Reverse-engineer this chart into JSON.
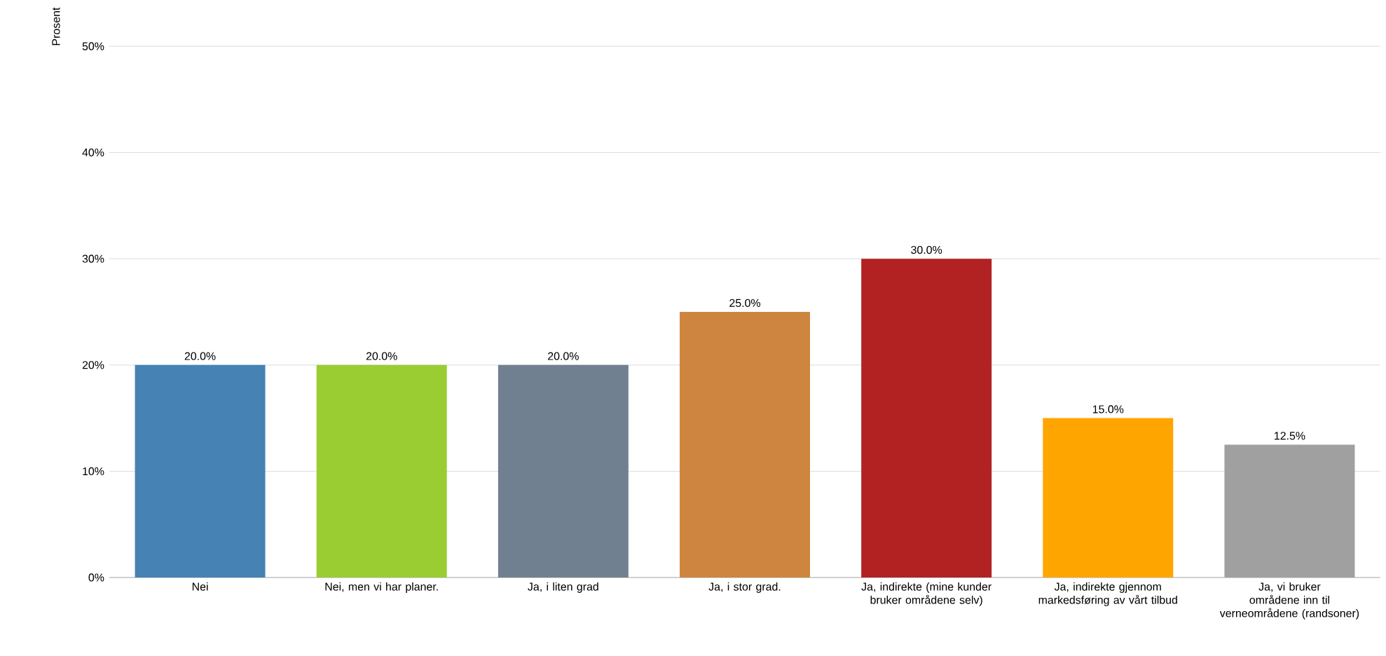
{
  "chart_data": {
    "type": "bar",
    "ylabel": "Prosent",
    "categories": [
      "Nei",
      "Nei, men vi har planer.",
      "Ja, i liten grad",
      "Ja, i stor grad.",
      "Ja, indirekte (mine kunder bruker områdene selv)",
      "Ja, indirekte gjennom markedsføring av vårt tilbud",
      "Ja, vi bruker områdene inn til verneområdene (randsoner)"
    ],
    "values": [
      20,
      20,
      20,
      25,
      30,
      15,
      12.5
    ],
    "value_labels": [
      "20.0%",
      "20.0%",
      "20.0%",
      "25.0%",
      "30.0%",
      "15.0%",
      "12.5%"
    ],
    "colors": [
      "#4682b4",
      "#9acd32",
      "#708090",
      "#cd853f",
      "#b22222",
      "#ffa500",
      "#a0a0a0"
    ],
    "ylim": [
      0,
      50
    ],
    "yticks": [
      {
        "value": 0,
        "label": "0%"
      },
      {
        "value": 10,
        "label": "10%"
      },
      {
        "value": 20,
        "label": "20%"
      },
      {
        "value": 30,
        "label": "30%"
      },
      {
        "value": 40,
        "label": "40%"
      },
      {
        "value": 50,
        "label": "50%"
      }
    ],
    "grid": "y"
  }
}
